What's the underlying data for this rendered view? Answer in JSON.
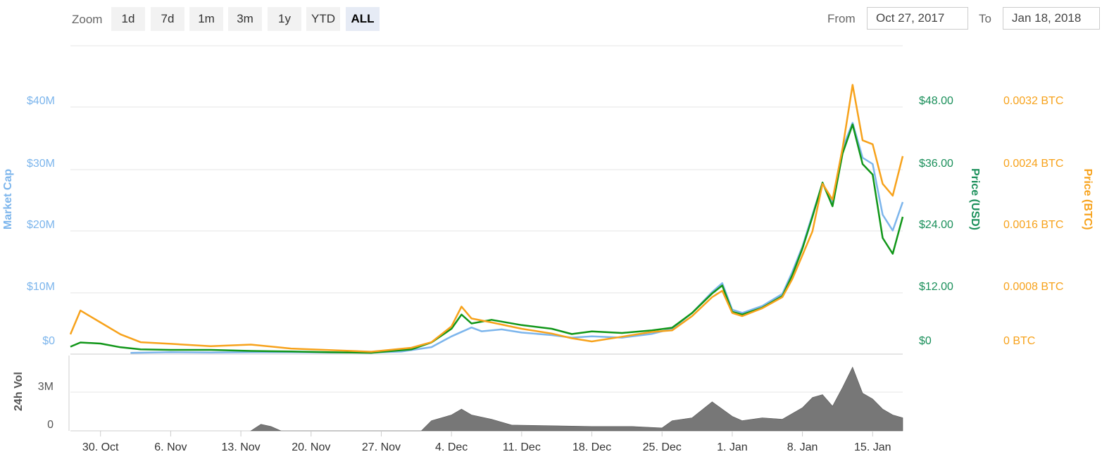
{
  "toolbar": {
    "zoom_label": "Zoom",
    "zoom_options": [
      "1d",
      "7d",
      "1m",
      "3m",
      "1y",
      "YTD",
      "ALL"
    ],
    "active_zoom": "ALL",
    "from_label": "From",
    "from_value": "Oct 27, 2017",
    "to_label": "To",
    "to_value": "Jan 18, 2018"
  },
  "colors": {
    "market_cap": "#7cb5ec",
    "price_usd": "#109618",
    "price_btc": "#f7a21b",
    "volume": "#777777",
    "grid": "#e6e6e6"
  },
  "chart_data": {
    "type": "line",
    "x_axis": {
      "start": "2017-10-27",
      "end": "2018-01-18",
      "tick_labels": [
        "30. Oct",
        "6. Nov",
        "13. Nov",
        "20. Nov",
        "27. Nov",
        "4. Dec",
        "11. Dec",
        "18. Dec",
        "25. Dec",
        "1. Jan",
        "8. Jan",
        "15. Jan"
      ]
    },
    "axes": {
      "market_cap": {
        "label": "Market Cap",
        "ticks": [
          "$0",
          "$10M",
          "$20M",
          "$30M",
          "$40M"
        ],
        "range": [
          0,
          40000000
        ]
      },
      "price_usd": {
        "label": "Price (USD)",
        "ticks": [
          "$0",
          "$12.00",
          "$24.00",
          "$36.00",
          "$48.00"
        ],
        "range": [
          0,
          48
        ]
      },
      "price_btc": {
        "label": "Price (BTC)",
        "ticks": [
          "0 BTC",
          "0.0008 BTC",
          "0.0016 BTC",
          "0.0024 BTC",
          "0.0032 BTC"
        ],
        "range": [
          0,
          0.0032
        ]
      },
      "volume": {
        "label": "24h Vol",
        "ticks": [
          "0",
          "3M"
        ],
        "range": [
          0,
          5200000
        ]
      }
    },
    "series": [
      {
        "name": "Market Cap",
        "axis": "market_cap",
        "points": [
          [
            "2017-11-02",
            0.2
          ],
          [
            "2017-11-06",
            0.3
          ],
          [
            "2017-11-10",
            0.25
          ],
          [
            "2017-11-14",
            0.3
          ],
          [
            "2017-11-18",
            0.3
          ],
          [
            "2017-11-22",
            0.25
          ],
          [
            "2017-11-26",
            0.25
          ],
          [
            "2017-11-29",
            0.4
          ],
          [
            "2017-12-02",
            1.1
          ],
          [
            "2017-12-04",
            2.8
          ],
          [
            "2017-12-06",
            4.2
          ],
          [
            "2017-12-07",
            3.6
          ],
          [
            "2017-12-09",
            3.9
          ],
          [
            "2017-12-11",
            3.4
          ],
          [
            "2017-12-14",
            3.0
          ],
          [
            "2017-12-16",
            2.6
          ],
          [
            "2017-12-18",
            2.8
          ],
          [
            "2017-12-21",
            2.6
          ],
          [
            "2017-12-24",
            3.2
          ],
          [
            "2017-12-26",
            4.0
          ],
          [
            "2017-12-28",
            6.5
          ],
          [
            "2017-12-30",
            9.8
          ],
          [
            "2017-12-31",
            11.2
          ],
          [
            "2018-01-01",
            7.0
          ],
          [
            "2018-01-02",
            6.5
          ],
          [
            "2018-01-04",
            7.6
          ],
          [
            "2018-01-06",
            9.5
          ],
          [
            "2018-01-07",
            13.0
          ],
          [
            "2018-01-08",
            17.0
          ],
          [
            "2018-01-09",
            22.0
          ],
          [
            "2018-01-10",
            27.0
          ],
          [
            "2018-01-11",
            24.0
          ],
          [
            "2018-01-12",
            32.5
          ],
          [
            "2018-01-13",
            36.5
          ],
          [
            "2018-01-14",
            31.0
          ],
          [
            "2018-01-15",
            30.0
          ],
          [
            "2018-01-16",
            22.0
          ],
          [
            "2018-01-17",
            19.5
          ],
          [
            "2018-01-18",
            24.0
          ]
        ]
      },
      {
        "name": "Price (USD)",
        "axis": "price_usd",
        "points": [
          [
            "2017-10-27",
            1.4
          ],
          [
            "2017-10-28",
            2.2
          ],
          [
            "2017-10-30",
            2.0
          ],
          [
            "2017-11-01",
            1.3
          ],
          [
            "2017-11-03",
            0.9
          ],
          [
            "2017-11-06",
            0.8
          ],
          [
            "2017-11-10",
            0.8
          ],
          [
            "2017-11-14",
            0.6
          ],
          [
            "2017-11-18",
            0.5
          ],
          [
            "2017-11-22",
            0.35
          ],
          [
            "2017-11-26",
            0.25
          ],
          [
            "2017-11-30",
            0.9
          ],
          [
            "2017-12-02",
            2.2
          ],
          [
            "2017-12-04",
            4.8
          ],
          [
            "2017-12-05",
            7.5
          ],
          [
            "2017-12-06",
            5.8
          ],
          [
            "2017-12-08",
            6.5
          ],
          [
            "2017-12-11",
            5.5
          ],
          [
            "2017-12-14",
            4.8
          ],
          [
            "2017-12-16",
            3.8
          ],
          [
            "2017-12-18",
            4.3
          ],
          [
            "2017-12-21",
            4.0
          ],
          [
            "2017-12-24",
            4.5
          ],
          [
            "2017-12-26",
            5.0
          ],
          [
            "2017-12-28",
            7.8
          ],
          [
            "2017-12-30",
            11.5
          ],
          [
            "2017-12-31",
            13.0
          ],
          [
            "2018-01-01",
            8.0
          ],
          [
            "2018-01-02",
            7.5
          ],
          [
            "2018-01-04",
            8.8
          ],
          [
            "2018-01-06",
            11.0
          ],
          [
            "2018-01-07",
            15.0
          ],
          [
            "2018-01-08",
            20.0
          ],
          [
            "2018-01-09",
            26.0
          ],
          [
            "2018-01-10",
            32.5
          ],
          [
            "2018-01-11",
            28.0
          ],
          [
            "2018-01-12",
            38.0
          ],
          [
            "2018-01-13",
            43.5
          ],
          [
            "2018-01-14",
            36.0
          ],
          [
            "2018-01-15",
            34.0
          ],
          [
            "2018-01-16",
            22.0
          ],
          [
            "2018-01-17",
            19.0
          ],
          [
            "2018-01-18",
            26.0
          ]
        ]
      },
      {
        "name": "Price (BTC)",
        "axis": "price_btc",
        "points": [
          [
            "2017-10-27",
            0.00025
          ],
          [
            "2017-10-28",
            0.00055
          ],
          [
            "2017-10-30",
            0.0004
          ],
          [
            "2017-11-01",
            0.00025
          ],
          [
            "2017-11-03",
            0.00015
          ],
          [
            "2017-11-06",
            0.00013
          ],
          [
            "2017-11-10",
            0.0001
          ],
          [
            "2017-11-14",
            0.00012
          ],
          [
            "2017-11-18",
            7e-05
          ],
          [
            "2017-11-22",
            5e-05
          ],
          [
            "2017-11-26",
            3e-05
          ],
          [
            "2017-11-30",
            8e-05
          ],
          [
            "2017-12-02",
            0.00015
          ],
          [
            "2017-12-04",
            0.00035
          ],
          [
            "2017-12-05",
            0.0006
          ],
          [
            "2017-12-06",
            0.00045
          ],
          [
            "2017-12-08",
            0.0004
          ],
          [
            "2017-12-11",
            0.00032
          ],
          [
            "2017-12-14",
            0.00026
          ],
          [
            "2017-12-16",
            0.0002
          ],
          [
            "2017-12-18",
            0.00016
          ],
          [
            "2017-12-21",
            0.00022
          ],
          [
            "2017-12-24",
            0.00028
          ],
          [
            "2017-12-26",
            0.0003
          ],
          [
            "2017-12-28",
            0.00048
          ],
          [
            "2017-12-30",
            0.00072
          ],
          [
            "2017-12-31",
            0.0008
          ],
          [
            "2018-01-01",
            0.00052
          ],
          [
            "2018-01-02",
            0.00048
          ],
          [
            "2018-01-04",
            0.00058
          ],
          [
            "2018-01-06",
            0.00072
          ],
          [
            "2018-01-07",
            0.00095
          ],
          [
            "2018-01-08",
            0.00125
          ],
          [
            "2018-01-09",
            0.00155
          ],
          [
            "2018-01-10",
            0.00215
          ],
          [
            "2018-01-11",
            0.00195
          ],
          [
            "2018-01-12",
            0.0026
          ],
          [
            "2018-01-13",
            0.0034
          ],
          [
            "2018-01-14",
            0.0027
          ],
          [
            "2018-01-15",
            0.00265
          ],
          [
            "2018-01-16",
            0.00215
          ],
          [
            "2018-01-17",
            0.002
          ],
          [
            "2018-01-18",
            0.0025
          ]
        ]
      }
    ],
    "volume": {
      "name": "24h Vol",
      "points": [
        [
          "2017-11-14",
          0
        ],
        [
          "2017-11-15",
          450000
        ],
        [
          "2017-11-16",
          300000
        ],
        [
          "2017-11-17",
          0
        ],
        [
          "2017-12-01",
          0
        ],
        [
          "2017-12-02",
          700000
        ],
        [
          "2017-12-04",
          1100000
        ],
        [
          "2017-12-05",
          1500000
        ],
        [
          "2017-12-06",
          1100000
        ],
        [
          "2017-12-08",
          800000
        ],
        [
          "2017-12-10",
          400000
        ],
        [
          "2017-12-14",
          350000
        ],
        [
          "2017-12-18",
          300000
        ],
        [
          "2017-12-22",
          300000
        ],
        [
          "2017-12-25",
          200000
        ],
        [
          "2017-12-26",
          700000
        ],
        [
          "2017-12-28",
          900000
        ],
        [
          "2017-12-30",
          2000000
        ],
        [
          "2018-01-01",
          1000000
        ],
        [
          "2018-01-02",
          700000
        ],
        [
          "2018-01-04",
          900000
        ],
        [
          "2018-01-06",
          800000
        ],
        [
          "2018-01-08",
          1600000
        ],
        [
          "2018-01-09",
          2300000
        ],
        [
          "2018-01-10",
          2500000
        ],
        [
          "2018-01-11",
          1700000
        ],
        [
          "2018-01-12",
          3000000
        ],
        [
          "2018-01-13",
          4400000
        ],
        [
          "2018-01-14",
          2600000
        ],
        [
          "2018-01-15",
          2200000
        ],
        [
          "2018-01-16",
          1500000
        ],
        [
          "2018-01-17",
          1100000
        ],
        [
          "2018-01-18",
          900000
        ]
      ]
    },
    "grid": true,
    "legend": "none"
  }
}
